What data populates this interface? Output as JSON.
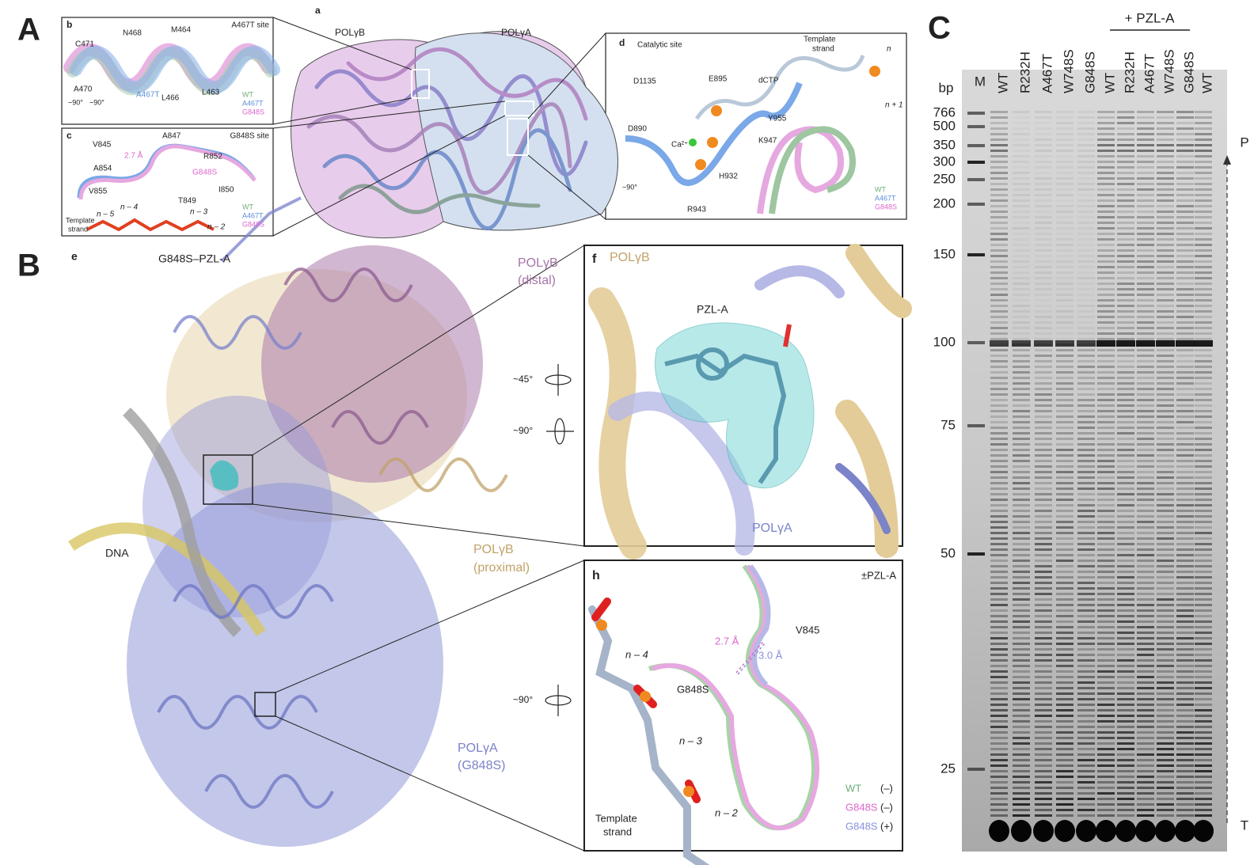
{
  "panel_a": {
    "letter": "A",
    "b": {
      "letter": "b",
      "title": "A467T site",
      "residues": [
        "C471",
        "N468",
        "M464",
        "A470",
        "A467T",
        "L466",
        "L463"
      ],
      "rotations": [
        "~90°",
        "~90°"
      ],
      "legend": [
        "WT",
        "A467T",
        "G848S"
      ]
    },
    "a": {
      "letter": "a",
      "labels": [
        "POLγB",
        "POLγA"
      ]
    },
    "c": {
      "letter": "c",
      "title": "G848S site",
      "residues": [
        "V845",
        "A847",
        "2.7 Å",
        "R852",
        "A854",
        "G848S",
        "V855",
        "I850",
        "T849",
        "n – 4",
        "n – 3",
        "n – 5",
        "n – 2"
      ],
      "strand": [
        "Template",
        "strand"
      ],
      "legend": [
        "WT",
        "A467T",
        "G848S"
      ]
    },
    "d": {
      "letter": "d",
      "title": "Catalytic site",
      "strand": [
        "Template",
        "strand"
      ],
      "residues": [
        "n",
        "n + 1",
        "D1135",
        "E895",
        "dCTP",
        "D890",
        "Ca²⁺",
        "Y955",
        "K947",
        "H932",
        "R943"
      ],
      "rotation": "~90°",
      "legend": [
        "WT",
        "A467T",
        "G848S"
      ]
    }
  },
  "panel_b": {
    "letter": "B",
    "e": {
      "letter": "e",
      "title": "G848S–PZL-A",
      "distal": [
        "POLγB",
        "(distal)"
      ],
      "proximal": [
        "POLγB",
        "(proximal)"
      ],
      "pola": [
        "POLγA",
        "(G848S)"
      ],
      "dna": "DNA",
      "rotations": [
        "~45°",
        "~90°",
        "~90°"
      ]
    },
    "f": {
      "letter": "f",
      "labels": [
        "POLγB",
        "PZL-A",
        "POLγA"
      ]
    },
    "h": {
      "letter": "h",
      "title": "±PZL-A",
      "labels": [
        "V845",
        "2.7 Å",
        "3.0 Å",
        "n – 4",
        "G848S",
        "n – 3",
        "n – 2"
      ],
      "strand": [
        "Template",
        "strand"
      ],
      "legend": [
        [
          "WT",
          "(–)"
        ],
        [
          "G848S",
          "(–)"
        ],
        [
          "G848S",
          "(+)"
        ]
      ]
    }
  },
  "panel_c": {
    "letter": "C",
    "treatment": "+ PZL-A",
    "unit": "bp",
    "lanes": [
      "M",
      "WT",
      "R232H",
      "A467T",
      "W748S",
      "G848S",
      "WT",
      "R232H",
      "A467T",
      "W748S",
      "G848S",
      "WT"
    ],
    "ladder": [
      "766",
      "500",
      "350",
      "300",
      "250",
      "200",
      "150",
      "100",
      "75",
      "50",
      "25"
    ],
    "ends": [
      "P",
      "T"
    ]
  }
}
